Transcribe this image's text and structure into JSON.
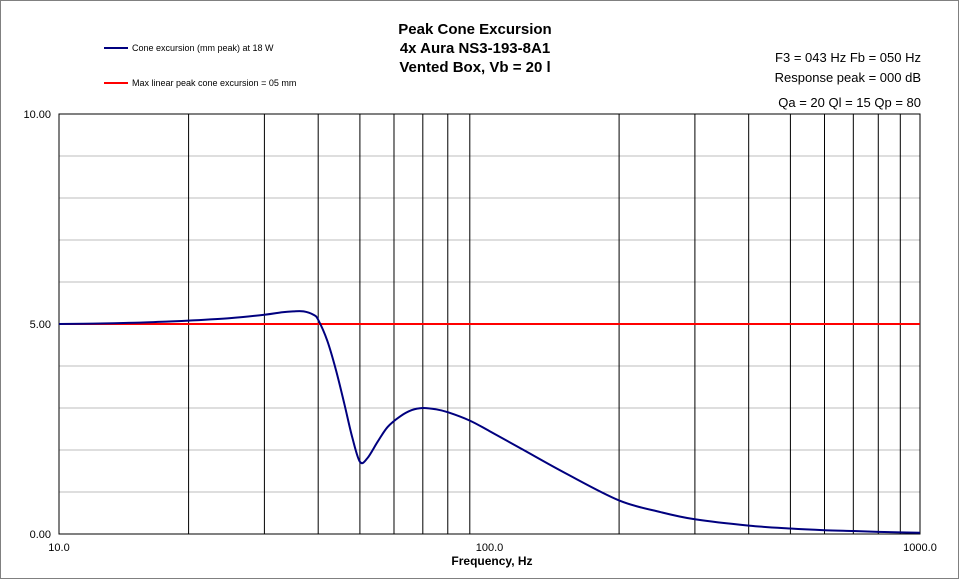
{
  "chart_data": {
    "type": "line",
    "title_lines": [
      "Peak Cone Excursion",
      "4x Aura NS3-193-8A1",
      "Vented Box, Vb = 20 l"
    ],
    "annotations": [
      "F3 = 043  Hz  Fb = 050  Hz",
      "Response peak = 000  dB",
      "Qa = 20  Ql = 15  Qp = 80"
    ],
    "xlabel": "Frequency, Hz",
    "ylabel": "",
    "x_scale": "log",
    "xlim": [
      10,
      1000
    ],
    "ylim": [
      0,
      10
    ],
    "x_tick_labels": [
      "10.0",
      "100.0",
      "1000.0"
    ],
    "y_tick_labels": [
      "0.00",
      "5.00",
      "10.00"
    ],
    "x_ticks": [
      10,
      100,
      1000
    ],
    "y_ticks": [
      0,
      5,
      10
    ],
    "x_grid": [
      20,
      30,
      40,
      50,
      60,
      70,
      80,
      90,
      200,
      300,
      400,
      500,
      600,
      700,
      800,
      900
    ],
    "y_grid_minor": [
      1,
      2,
      3,
      4,
      6,
      7,
      8,
      9
    ],
    "grid": true,
    "legend_placement": "top-left",
    "series": [
      {
        "name": "Cone excursion (mm peak) at 18 W",
        "color": "#00007f",
        "x": [
          10,
          12,
          15,
          18,
          20,
          25,
          30,
          33,
          35,
          37,
          39,
          40,
          42,
          44,
          46,
          48,
          50,
          52,
          55,
          58,
          62,
          66,
          70,
          75,
          80,
          90,
          100,
          120,
          150,
          200,
          250,
          300,
          400,
          500,
          600,
          700,
          800,
          900,
          1000
        ],
        "y": [
          5.0,
          5.01,
          5.03,
          5.06,
          5.08,
          5.14,
          5.22,
          5.28,
          5.3,
          5.3,
          5.22,
          5.1,
          4.6,
          3.9,
          3.1,
          2.3,
          1.72,
          1.8,
          2.2,
          2.55,
          2.8,
          2.95,
          3.0,
          2.97,
          2.9,
          2.7,
          2.45,
          2.0,
          1.45,
          0.8,
          0.52,
          0.35,
          0.2,
          0.13,
          0.09,
          0.07,
          0.05,
          0.04,
          0.03
        ]
      },
      {
        "name": "Max linear peak cone excursion = 05 mm",
        "color": "#ff0000",
        "x": [
          10,
          1000
        ],
        "y": [
          5.0,
          5.0
        ]
      }
    ]
  }
}
